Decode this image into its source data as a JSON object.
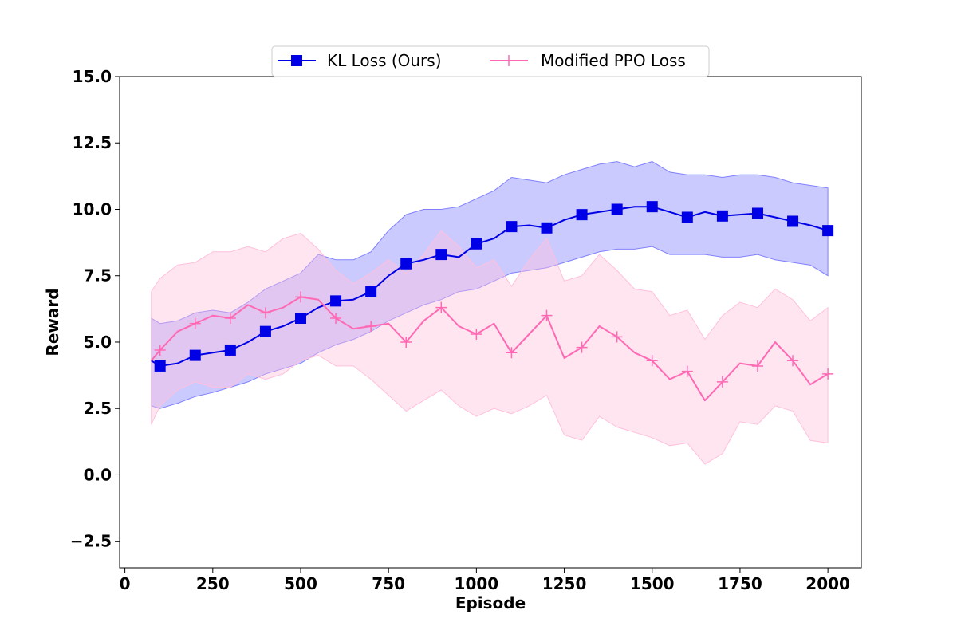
{
  "chart_data": {
    "type": "line",
    "title": "",
    "xlabel": "Episode",
    "ylabel": "Reward",
    "xlim": [
      -15,
      2095
    ],
    "ylim": [
      -3.5,
      15.0
    ],
    "xticks": [
      0,
      250,
      500,
      750,
      1000,
      1250,
      1500,
      1750,
      2000
    ],
    "yticks": [
      -2.5,
      0.0,
      2.5,
      5.0,
      7.5,
      10.0,
      12.5,
      15.0
    ],
    "ytick_labels": [
      "−2.5",
      "0.0",
      "2.5",
      "5.0",
      "7.5",
      "10.0",
      "12.5",
      "15.0"
    ],
    "grid": false,
    "legend_position": "top-center",
    "series": [
      {
        "name": "KL Loss (Ours)",
        "color": "#0000e6",
        "band_color": "#8080ff",
        "marker": "square",
        "x": [
          75,
          100,
          150,
          200,
          250,
          300,
          350,
          400,
          450,
          500,
          550,
          600,
          650,
          700,
          750,
          800,
          850,
          900,
          950,
          1000,
          1050,
          1100,
          1150,
          1200,
          1250,
          1300,
          1350,
          1400,
          1450,
          1500,
          1550,
          1600,
          1650,
          1700,
          1750,
          1800,
          1850,
          1900,
          1950,
          2000
        ],
        "y": [
          4.3,
          4.1,
          4.2,
          4.5,
          4.6,
          4.7,
          5.0,
          5.4,
          5.6,
          5.9,
          6.3,
          6.55,
          6.6,
          6.9,
          7.5,
          7.95,
          8.1,
          8.3,
          8.2,
          8.7,
          8.9,
          9.35,
          9.4,
          9.3,
          9.6,
          9.8,
          9.9,
          10.0,
          10.1,
          10.1,
          9.9,
          9.7,
          9.9,
          9.75,
          9.8,
          9.85,
          9.7,
          9.55,
          9.4,
          9.2
        ],
        "lower": [
          2.6,
          2.5,
          2.7,
          2.95,
          3.1,
          3.3,
          3.5,
          3.8,
          4.0,
          4.2,
          4.6,
          4.9,
          5.1,
          5.4,
          5.8,
          6.1,
          6.4,
          6.6,
          6.9,
          7.0,
          7.3,
          7.6,
          7.7,
          7.8,
          8.0,
          8.2,
          8.4,
          8.5,
          8.5,
          8.6,
          8.3,
          8.3,
          8.3,
          8.2,
          8.2,
          8.3,
          8.1,
          8.0,
          7.9,
          7.5
        ],
        "upper": [
          5.9,
          5.7,
          5.8,
          6.1,
          6.2,
          6.1,
          6.5,
          7.0,
          7.3,
          7.6,
          8.3,
          8.1,
          8.1,
          8.4,
          9.2,
          9.8,
          10.0,
          10.0,
          10.1,
          10.4,
          10.7,
          11.2,
          11.1,
          11.0,
          11.3,
          11.5,
          11.7,
          11.8,
          11.6,
          11.8,
          11.4,
          11.3,
          11.3,
          11.2,
          11.3,
          11.3,
          11.2,
          11.0,
          10.9,
          10.8
        ]
      },
      {
        "name": "Modified PPO Loss",
        "color": "#ff69b4",
        "band_color": "#ffc0dc",
        "marker": "plus",
        "x": [
          75,
          100,
          150,
          200,
          250,
          300,
          350,
          400,
          450,
          500,
          550,
          600,
          650,
          700,
          750,
          800,
          850,
          900,
          950,
          1000,
          1050,
          1100,
          1150,
          1200,
          1250,
          1300,
          1350,
          1400,
          1450,
          1500,
          1550,
          1600,
          1650,
          1700,
          1750,
          1800,
          1850,
          1900,
          1950,
          2000
        ],
        "y": [
          4.3,
          4.7,
          5.4,
          5.7,
          6.0,
          5.9,
          6.4,
          6.1,
          6.3,
          6.7,
          6.6,
          5.9,
          5.5,
          5.6,
          5.7,
          5.0,
          5.8,
          6.3,
          5.6,
          5.3,
          5.7,
          4.6,
          5.3,
          6.0,
          4.4,
          4.8,
          5.6,
          5.2,
          4.6,
          4.3,
          3.6,
          3.9,
          2.8,
          3.5,
          4.2,
          4.1,
          5.0,
          4.3,
          3.4,
          3.8
        ],
        "lower": [
          1.9,
          2.6,
          3.2,
          3.5,
          3.3,
          3.3,
          3.8,
          3.6,
          3.8,
          4.3,
          4.5,
          4.1,
          4.1,
          3.6,
          3.0,
          2.4,
          2.8,
          3.2,
          2.6,
          2.2,
          2.5,
          2.3,
          2.6,
          3.0,
          1.5,
          1.3,
          2.2,
          1.8,
          1.6,
          1.4,
          1.1,
          1.2,
          0.4,
          0.8,
          2.0,
          1.9,
          2.6,
          2.4,
          1.3,
          1.2
        ],
        "upper": [
          6.9,
          7.4,
          7.9,
          8.0,
          8.4,
          8.4,
          8.6,
          8.4,
          8.9,
          9.1,
          8.5,
          7.7,
          7.2,
          7.6,
          8.1,
          7.6,
          8.3,
          9.2,
          8.6,
          7.8,
          8.1,
          7.1,
          8.1,
          8.9,
          7.3,
          7.5,
          8.3,
          7.7,
          7.0,
          6.9,
          6.0,
          6.2,
          5.1,
          6.0,
          6.5,
          6.3,
          7.0,
          6.6,
          5.8,
          6.3
        ]
      }
    ]
  }
}
